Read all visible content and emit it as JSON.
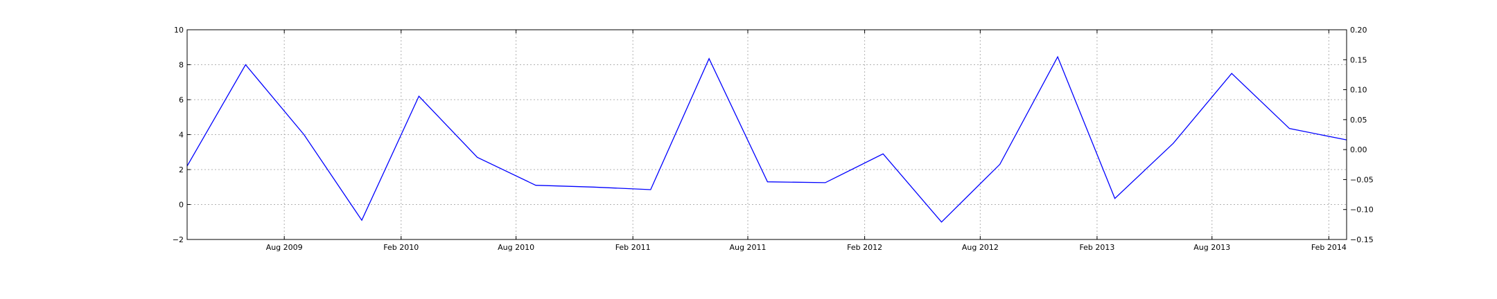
{
  "chart_data": {
    "type": "line",
    "title": "",
    "xlabel": "",
    "ylabel": "",
    "grid": true,
    "x": [
      "2009-03-01",
      "2009-06-01",
      "2009-09-01",
      "2009-12-01",
      "2010-03-01",
      "2010-06-01",
      "2010-09-01",
      "2010-12-01",
      "2011-03-01",
      "2011-06-01",
      "2011-09-01",
      "2011-12-01",
      "2012-03-01",
      "2012-06-01",
      "2012-09-01",
      "2012-12-01",
      "2013-03-01",
      "2013-06-01",
      "2013-09-01",
      "2013-12-01",
      "2014-03-01"
    ],
    "series": [
      {
        "values": [
          2.2,
          8.0,
          4.0,
          -0.9,
          6.2,
          2.7,
          1.1,
          1.0,
          0.85,
          8.35,
          1.3,
          1.25,
          2.9,
          -1.0,
          2.3,
          8.45,
          0.35,
          3.5,
          7.5,
          4.35,
          3.7
        ]
      }
    ],
    "xlim": [
      "2009-03-01",
      "2014-03-01"
    ],
    "ylim": [
      -2,
      10
    ],
    "y_ticks": [
      "−2",
      "0",
      "2",
      "4",
      "6",
      "8",
      "10"
    ],
    "y2lim": [
      -0.15,
      0.2
    ],
    "y2_ticks": [
      "−0.15",
      "−0.10",
      "−0.05",
      "0.00",
      "0.05",
      "0.10",
      "0.15",
      "0.20"
    ],
    "x_ticks": [
      {
        "date": "2009-08-01",
        "label": "Aug 2009"
      },
      {
        "date": "2010-02-01",
        "label": "Feb 2010"
      },
      {
        "date": "2010-08-01",
        "label": "Aug 2010"
      },
      {
        "date": "2011-02-01",
        "label": "Feb 2011"
      },
      {
        "date": "2011-08-01",
        "label": "Aug 2011"
      },
      {
        "date": "2012-02-01",
        "label": "Feb 2012"
      },
      {
        "date": "2012-08-01",
        "label": "Aug 2012"
      },
      {
        "date": "2013-02-01",
        "label": "Feb 2013"
      },
      {
        "date": "2013-08-01",
        "label": "Aug 2013"
      },
      {
        "date": "2014-02-01",
        "label": "Feb 2014"
      }
    ],
    "colors": {
      "line": "#0000ff",
      "grid": "#b0b0b0",
      "axes": "#000000"
    }
  }
}
